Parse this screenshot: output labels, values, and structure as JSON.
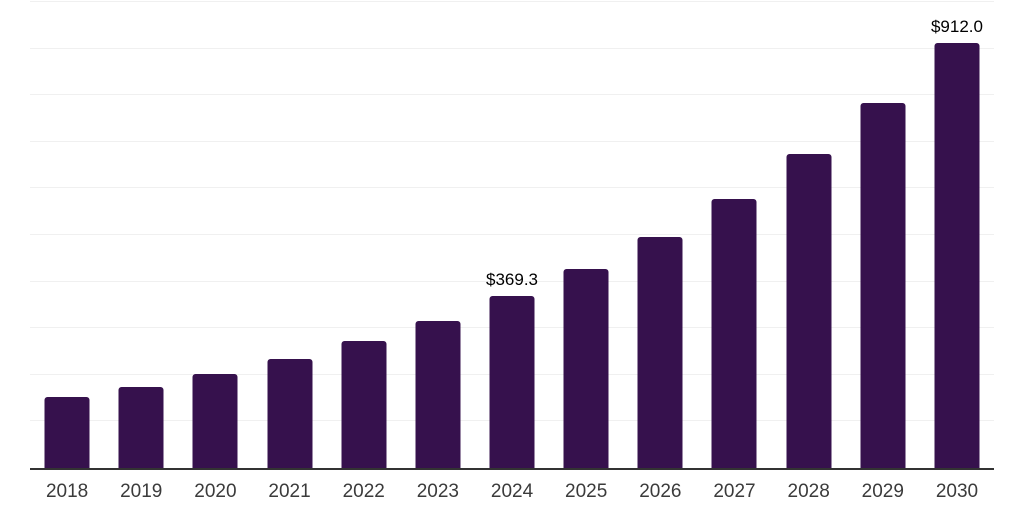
{
  "chart_data": {
    "type": "bar",
    "title": "",
    "xlabel": "",
    "ylabel": "",
    "categories": [
      "2018",
      "2019",
      "2020",
      "2021",
      "2022",
      "2023",
      "2024",
      "2025",
      "2026",
      "2027",
      "2028",
      "2029",
      "2030"
    ],
    "values": [
      152.1,
      174.0,
      202.5,
      233.9,
      272.0,
      315.6,
      369.3,
      427.5,
      496.3,
      577.5,
      673.9,
      783.2,
      912.0
    ],
    "data_labels": [
      "",
      "",
      "",
      "",
      "",
      "",
      "$369.3",
      "",
      "",
      "",
      "",
      "",
      "$912.0"
    ],
    "ylim": [
      0,
      1004
    ],
    "y_gridline_step": 100,
    "grid": "horizontal",
    "legend_position": "none",
    "colors": {
      "bar": "#36114d",
      "background": "#ffffff",
      "gridline": "#f0f0f0",
      "axis_line": "#333333",
      "tick_label": "#3b3b3b",
      "data_label": "#000000"
    }
  }
}
